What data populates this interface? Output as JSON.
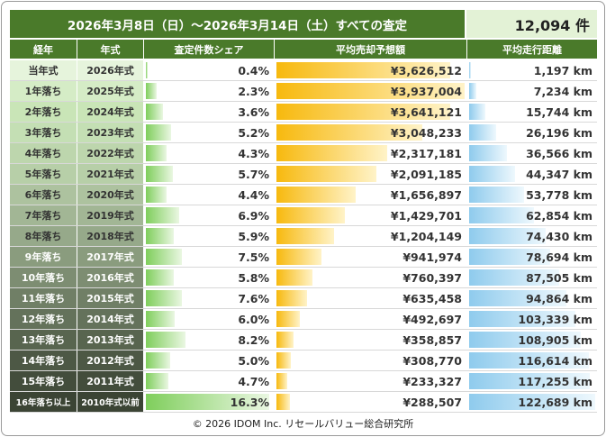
{
  "header": {
    "title": "2026年3月8日（日）～2026年3月14日（土）すべての査定",
    "count": "12,094 件"
  },
  "columns": [
    "経年",
    "年式",
    "査定件数シェア",
    "平均売却予想額",
    "平均走行距離"
  ],
  "footer": "© 2026 IDOM Inc. リセールバリュー総合研究所",
  "colors": {
    "header_green": "#4a7a2a",
    "share_bar": "#7fce5c",
    "price_bar": "#f7b90e",
    "km_bar": "#8fcbed"
  },
  "chart_data": {
    "type": "table",
    "rows": [
      {
        "age": "当年式",
        "year": "2026年式",
        "share": 0.4,
        "share_label": "0.4%",
        "price": 3626512,
        "price_label": "¥3,626,512",
        "km": 1197,
        "km_label": "1,197 km"
      },
      {
        "age": "1年落ち",
        "year": "2025年式",
        "share": 2.3,
        "share_label": "2.3%",
        "price": 3937004,
        "price_label": "¥3,937,004",
        "km": 7234,
        "km_label": "7,234 km"
      },
      {
        "age": "2年落ち",
        "year": "2024年式",
        "share": 3.6,
        "share_label": "3.6%",
        "price": 3641121,
        "price_label": "¥3,641,121",
        "km": 15744,
        "km_label": "15,744 km"
      },
      {
        "age": "3年落ち",
        "year": "2023年式",
        "share": 5.2,
        "share_label": "5.2%",
        "price": 3048233,
        "price_label": "¥3,048,233",
        "km": 26196,
        "km_label": "26,196 km"
      },
      {
        "age": "4年落ち",
        "year": "2022年式",
        "share": 4.3,
        "share_label": "4.3%",
        "price": 2317181,
        "price_label": "¥2,317,181",
        "km": 36566,
        "km_label": "36,566 km"
      },
      {
        "age": "5年落ち",
        "year": "2021年式",
        "share": 5.7,
        "share_label": "5.7%",
        "price": 2091185,
        "price_label": "¥2,091,185",
        "km": 44347,
        "km_label": "44,347 km"
      },
      {
        "age": "6年落ち",
        "year": "2020年式",
        "share": 4.4,
        "share_label": "4.4%",
        "price": 1656897,
        "price_label": "¥1,656,897",
        "km": 53778,
        "km_label": "53,778 km"
      },
      {
        "age": "7年落ち",
        "year": "2019年式",
        "share": 6.9,
        "share_label": "6.9%",
        "price": 1429701,
        "price_label": "¥1,429,701",
        "km": 62854,
        "km_label": "62,854 km"
      },
      {
        "age": "8年落ち",
        "year": "2018年式",
        "share": 5.9,
        "share_label": "5.9%",
        "price": 1204149,
        "price_label": "¥1,204,149",
        "km": 74430,
        "km_label": "74,430 km"
      },
      {
        "age": "9年落ち",
        "year": "2017年式",
        "share": 7.5,
        "share_label": "7.5%",
        "price": 941974,
        "price_label": "¥941,974",
        "km": 78694,
        "km_label": "78,694 km"
      },
      {
        "age": "10年落ち",
        "year": "2016年式",
        "share": 5.8,
        "share_label": "5.8%",
        "price": 760397,
        "price_label": "¥760,397",
        "km": 87505,
        "km_label": "87,505 km"
      },
      {
        "age": "11年落ち",
        "year": "2015年式",
        "share": 7.6,
        "share_label": "7.6%",
        "price": 635458,
        "price_label": "¥635,458",
        "km": 94864,
        "km_label": "94,864 km"
      },
      {
        "age": "12年落ち",
        "year": "2014年式",
        "share": 6.0,
        "share_label": "6.0%",
        "price": 492697,
        "price_label": "¥492,697",
        "km": 103339,
        "km_label": "103,339 km"
      },
      {
        "age": "13年落ち",
        "year": "2013年式",
        "share": 8.2,
        "share_label": "8.2%",
        "price": 358857,
        "price_label": "¥358,857",
        "km": 108905,
        "km_label": "108,905 km"
      },
      {
        "age": "14年落ち",
        "year": "2012年式",
        "share": 5.0,
        "share_label": "5.0%",
        "price": 308770,
        "price_label": "¥308,770",
        "km": 116614,
        "km_label": "116,614 km"
      },
      {
        "age": "15年落ち",
        "year": "2011年式",
        "share": 4.7,
        "share_label": "4.7%",
        "price": 233327,
        "price_label": "¥233,327",
        "km": 117255,
        "km_label": "117,255 km"
      },
      {
        "age": "16年落ち以上",
        "year": "2010年式以前",
        "share": 16.3,
        "share_label": "16.3%",
        "price": 288507,
        "price_label": "¥288,507",
        "km": 122689,
        "km_label": "122,689 km"
      }
    ],
    "share_max": 16.3,
    "price_max": 3937004,
    "km_max": 122689
  }
}
